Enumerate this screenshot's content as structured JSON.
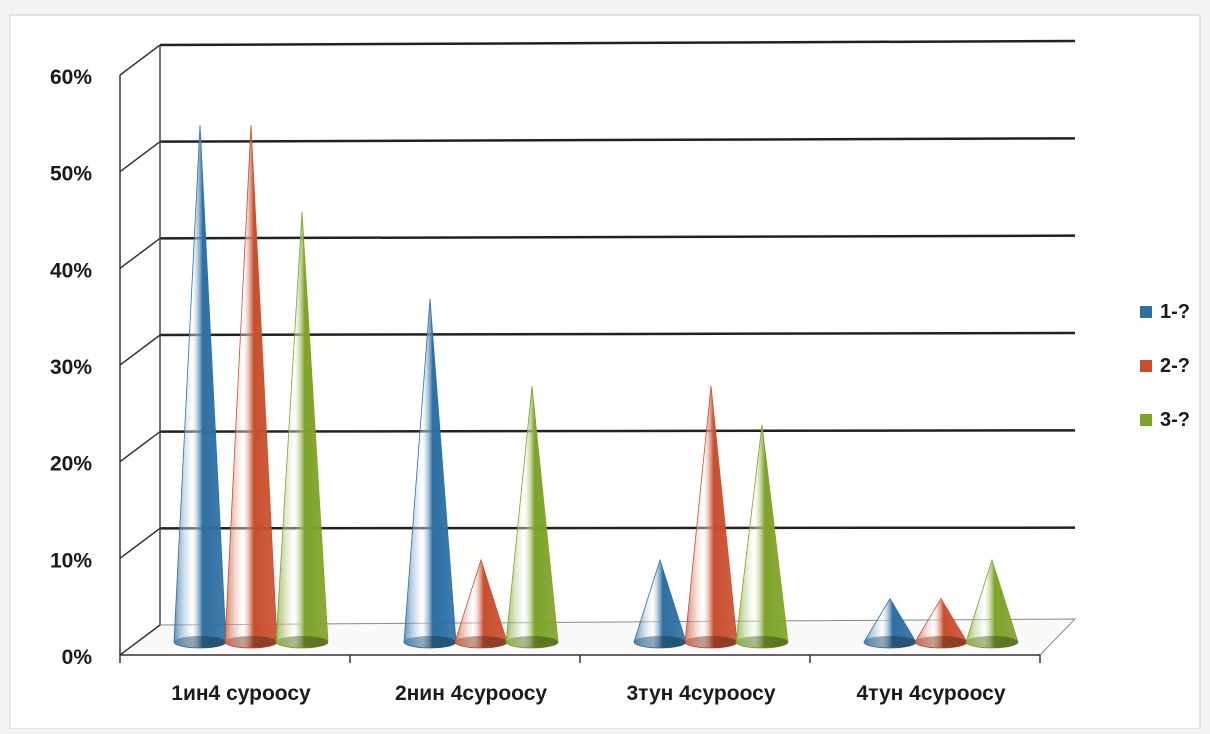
{
  "chart_data": {
    "type": "bar",
    "bar_shape": "cone",
    "categories": [
      "1ин4 суроосу",
      "2нин 4суроосу",
      "3тун 4суроосу",
      "4тун 4суроосу"
    ],
    "series": [
      {
        "name": "1-?",
        "values": [
          54,
          36,
          9,
          5
        ],
        "color": "#2e6fa3"
      },
      {
        "name": "2-?",
        "values": [
          54,
          9,
          27,
          5
        ],
        "color": "#c84f2e"
      },
      {
        "name": "3-?",
        "values": [
          45,
          27,
          23,
          9
        ],
        "color": "#7ea32a"
      }
    ],
    "ylim": [
      0,
      60
    ],
    "yticks": [
      "0%",
      "10%",
      "20%",
      "30%",
      "40%",
      "50%",
      "60%"
    ],
    "grid": true,
    "legend_position": "right"
  }
}
